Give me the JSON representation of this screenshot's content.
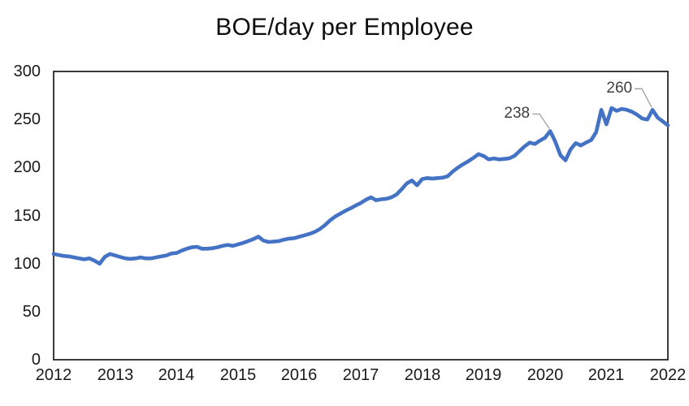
{
  "page": {
    "background": "#ffffff"
  },
  "chart_data": {
    "type": "line",
    "title": "BOE/day per Employee",
    "xlabel": "",
    "ylabel": "",
    "x_start": "2012-01",
    "x_interval": "monthly",
    "x_tick_labels": [
      "2012",
      "2013",
      "2014",
      "2015",
      "2016",
      "2017",
      "2018",
      "2019",
      "2020",
      "2021",
      "2022"
    ],
    "y_ticks": [
      0,
      50,
      100,
      150,
      200,
      250,
      300
    ],
    "ylim": [
      0,
      300
    ],
    "grid": false,
    "legend_position": "none",
    "plot_border_color": "#262626",
    "leader_line_color": "#a0a0a0",
    "series": [
      {
        "name": "BOE/day per Employee",
        "color": "#4472C4",
        "values": [
          110,
          109,
          108,
          107.5,
          106.5,
          105.5,
          104.5,
          105.5,
          103,
          100,
          107,
          110,
          108.5,
          107,
          105.5,
          105,
          105.5,
          106.5,
          105.5,
          105.5,
          106.5,
          107.5,
          108.5,
          110.5,
          111,
          113.5,
          115.5,
          117,
          117.5,
          115.5,
          115.5,
          116,
          117,
          118.5,
          119.5,
          118.5,
          120,
          121.5,
          123.5,
          125.5,
          128,
          124,
          122.5,
          123,
          123.5,
          125,
          126,
          126.5,
          128,
          129.5,
          131,
          133,
          136,
          140,
          145,
          149,
          152,
          155,
          157.5,
          160.5,
          163,
          166.5,
          169,
          166,
          167,
          167.5,
          169,
          172,
          177.5,
          183.5,
          186.5,
          181.5,
          188,
          189,
          188.5,
          189,
          189.5,
          191,
          196,
          200,
          203.5,
          206.5,
          210,
          214,
          212,
          208.5,
          209.5,
          208.5,
          209,
          209.5,
          212,
          217,
          222,
          226,
          224.5,
          228,
          231,
          238,
          227,
          213,
          207.5,
          219,
          225.5,
          223,
          226,
          228.5,
          237,
          260,
          245,
          262,
          259,
          261,
          260,
          258,
          255,
          251,
          250,
          260,
          252,
          248,
          244
        ]
      }
    ],
    "annotations": [
      {
        "label": "238",
        "month": "2020-02",
        "index": 97,
        "value": 238
      },
      {
        "label": "260",
        "month": "2021-10",
        "index": 117,
        "value": 260
      }
    ]
  }
}
